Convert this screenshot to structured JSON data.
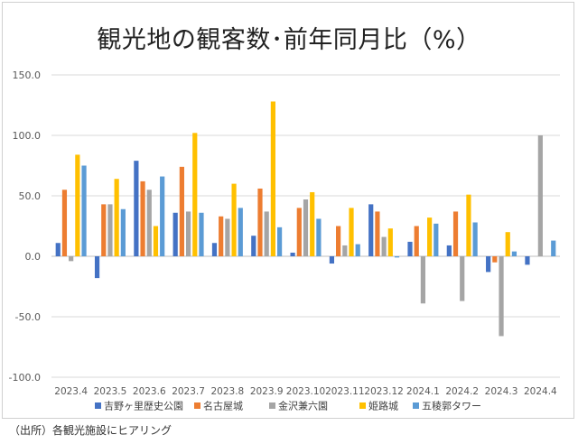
{
  "title": "観光地の観客数･前年同月比（%）",
  "source": "（出所）各観光施設にヒアリング",
  "chart_data": {
    "type": "bar",
    "title": "観光地の観客数･前年同月比（%）",
    "categories": [
      "2023.4",
      "2023.5",
      "2023.6",
      "2023.7",
      "2023.8",
      "2023.9",
      "2023.10",
      "2023.11",
      "2023.12",
      "2024.1",
      "2024.2",
      "2024.3",
      "2024.4"
    ],
    "ylim": [
      -100,
      150
    ],
    "yticks": [
      150.0,
      100.0,
      50.0,
      0.0,
      -50.0,
      -100.0
    ],
    "ytick_labels": [
      "150.0",
      "100.0",
      "50.0",
      "0.0",
      "-50.0",
      "-100.0"
    ],
    "grid": true,
    "legend_position": "bottom",
    "series": [
      {
        "name": "吉野ヶ里歴史公園",
        "color": "#4472C4",
        "values": [
          11,
          -18,
          79,
          36,
          11,
          17,
          3,
          -6,
          43,
          12,
          9,
          -13,
          -7
        ]
      },
      {
        "name": "名古屋城",
        "color": "#ED7D31",
        "values": [
          55,
          43,
          62,
          74,
          33,
          56,
          40,
          25,
          37,
          25,
          37,
          -5,
          null
        ]
      },
      {
        "name": "金沢兼六園",
        "color": "#A5A5A5",
        "values": [
          -4,
          43,
          55,
          37,
          31,
          37,
          47,
          9,
          16,
          -39,
          -37,
          -66,
          100
        ]
      },
      {
        "name": "姫路城",
        "color": "#FFC000",
        "values": [
          84,
          64,
          25,
          102,
          60,
          128,
          53,
          40,
          23,
          32,
          51,
          20,
          null
        ]
      },
      {
        "name": "五稜郭タワー",
        "color": "#5B9BD5",
        "values": [
          75,
          39,
          66,
          36,
          40,
          24,
          31,
          10,
          -1,
          27,
          28,
          4,
          13
        ]
      }
    ]
  }
}
